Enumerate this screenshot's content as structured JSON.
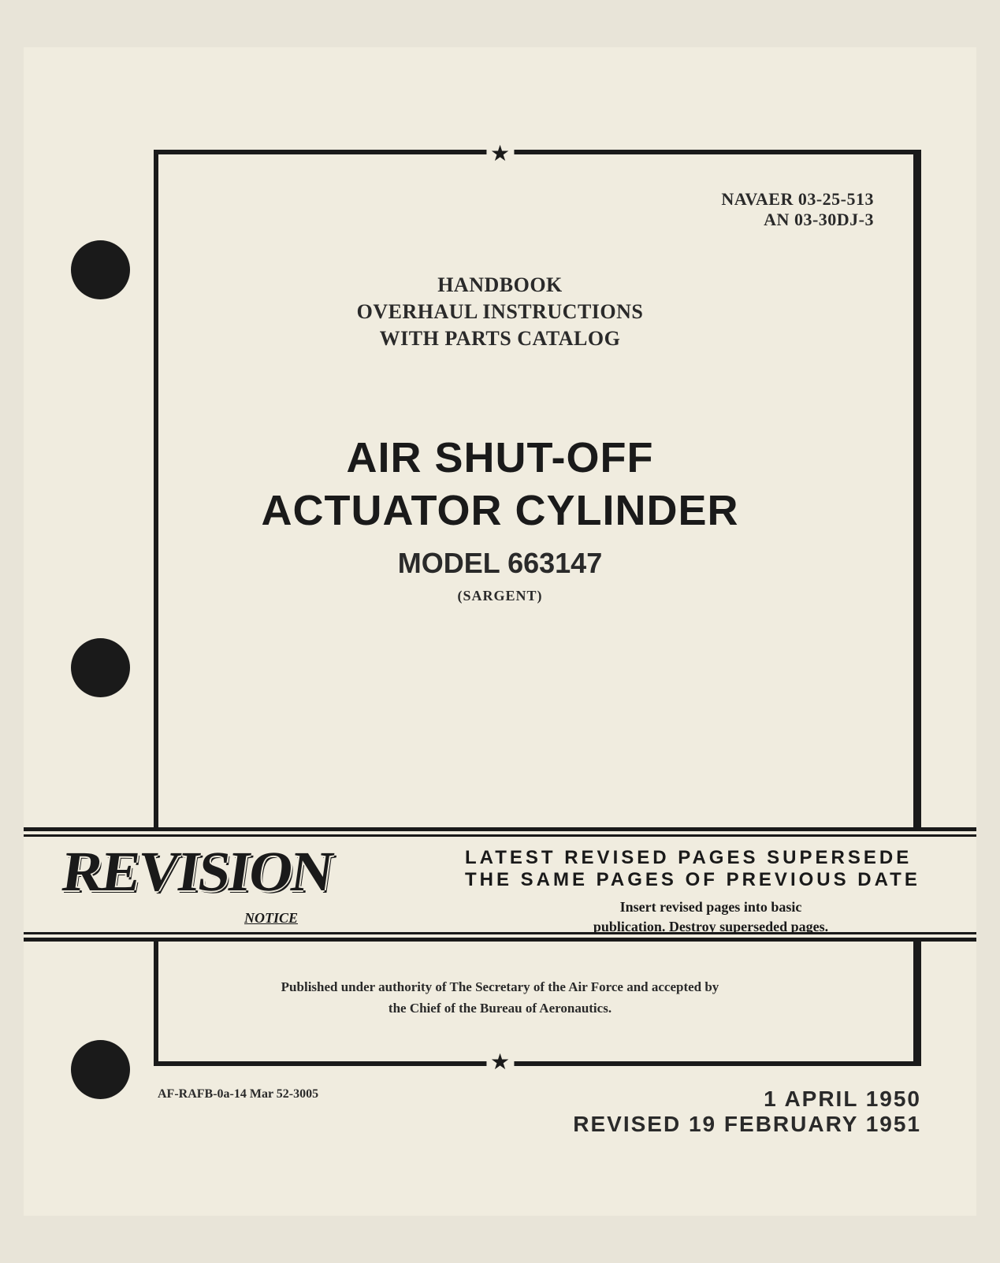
{
  "document_numbers": {
    "navaer": "NAVAER 03-25-513",
    "an": "AN 03-30DJ-3"
  },
  "header": {
    "line1": "HANDBOOK",
    "line2": "OVERHAUL INSTRUCTIONS",
    "line3": "WITH PARTS CATALOG"
  },
  "title": {
    "line1": "AIR SHUT-OFF",
    "line2": "ACTUATOR CYLINDER",
    "model": "MODEL 663147",
    "manufacturer": "(SARGENT)"
  },
  "revision": {
    "logo_text": "REVISION",
    "notice_label": "NOTICE",
    "supersede_line1": "LATEST REVISED PAGES SUPERSEDE",
    "supersede_line2": "THE SAME PAGES OF PREVIOUS DATE",
    "insert_line1": "Insert revised pages into basic",
    "insert_line2": "publication. Destroy superseded pages."
  },
  "authority": {
    "line1": "Published under authority of The Secretary of the Air Force and accepted by",
    "line2": "the Chief of the Bureau of Aeronautics."
  },
  "footer": {
    "left": "AF-RAFB-0a-14 Mar 52-3005",
    "date_original": "1 APRIL 1950",
    "date_revised": "REVISED 19 FEBRUARY 1951"
  },
  "styling": {
    "page_bg": "#e8e4d8",
    "content_bg": "#f0ecdf",
    "text_color": "#2a2a2a",
    "border_color": "#1a1a1a"
  }
}
